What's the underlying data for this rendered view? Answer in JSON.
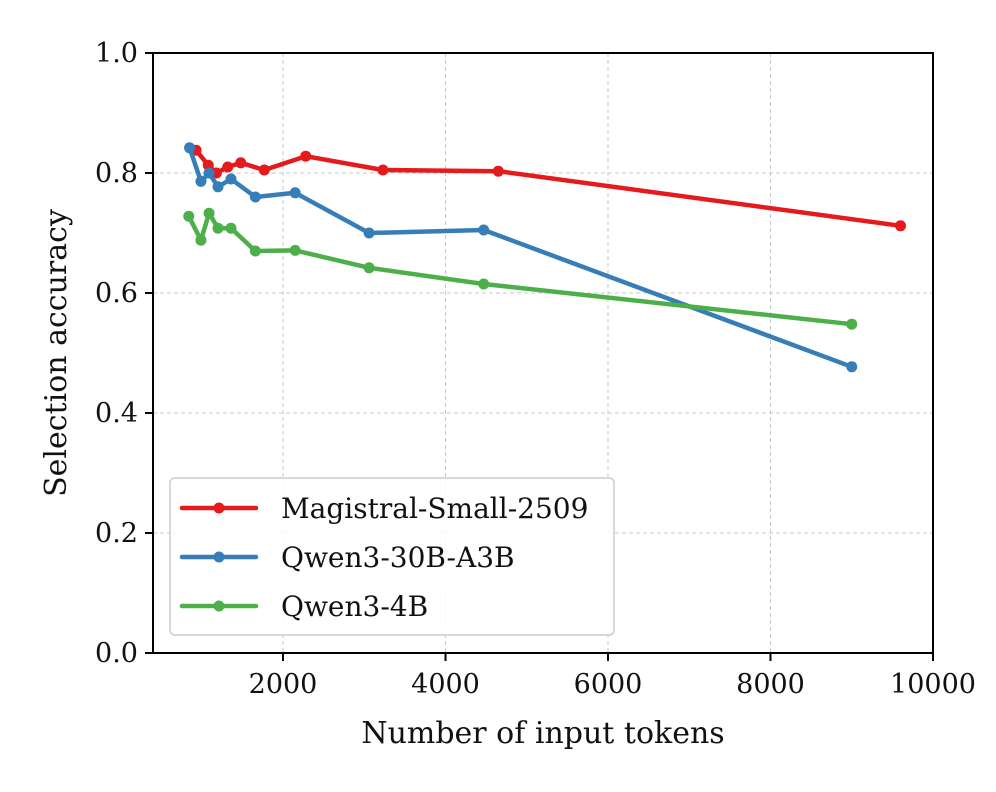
{
  "chart_data": {
    "type": "line",
    "xlabel": "Number of input tokens",
    "ylabel": "Selection accuracy",
    "xlim": [
      400,
      10000
    ],
    "ylim": [
      0.0,
      1.0
    ],
    "xticks": [
      2000,
      4000,
      6000,
      8000,
      10000
    ],
    "xtick_labels": [
      "2000",
      "4000",
      "6000",
      "8000",
      "10000"
    ],
    "yticks": [
      0.0,
      0.2,
      0.4,
      0.6,
      0.8,
      1.0
    ],
    "ytick_labels": [
      "0.0",
      "0.2",
      "0.4",
      "0.6",
      "0.8",
      "1.0"
    ],
    "grid": true,
    "legend_position": "lower-left",
    "series": [
      {
        "name": "Magistral-Small-2509",
        "color": "#e41a1c",
        "x": [
          930,
          1080,
          1180,
          1320,
          1480,
          1770,
          2280,
          3230,
          4650,
          9600
        ],
        "y": [
          0.838,
          0.813,
          0.8,
          0.81,
          0.817,
          0.805,
          0.828,
          0.805,
          0.803,
          0.712
        ]
      },
      {
        "name": "Qwen3-30B-A3B",
        "color": "#377eb8",
        "x": [
          850,
          990,
          1090,
          1200,
          1360,
          1660,
          2150,
          3060,
          4470,
          9000
        ],
        "y": [
          0.842,
          0.786,
          0.8,
          0.777,
          0.79,
          0.76,
          0.767,
          0.7,
          0.705,
          0.477
        ]
      },
      {
        "name": "Qwen3-4B",
        "color": "#4daf4a",
        "x": [
          840,
          990,
          1090,
          1200,
          1360,
          1660,
          2150,
          3060,
          4470,
          9000
        ],
        "y": [
          0.728,
          0.688,
          0.733,
          0.708,
          0.708,
          0.67,
          0.671,
          0.642,
          0.615,
          0.548
        ]
      }
    ]
  }
}
